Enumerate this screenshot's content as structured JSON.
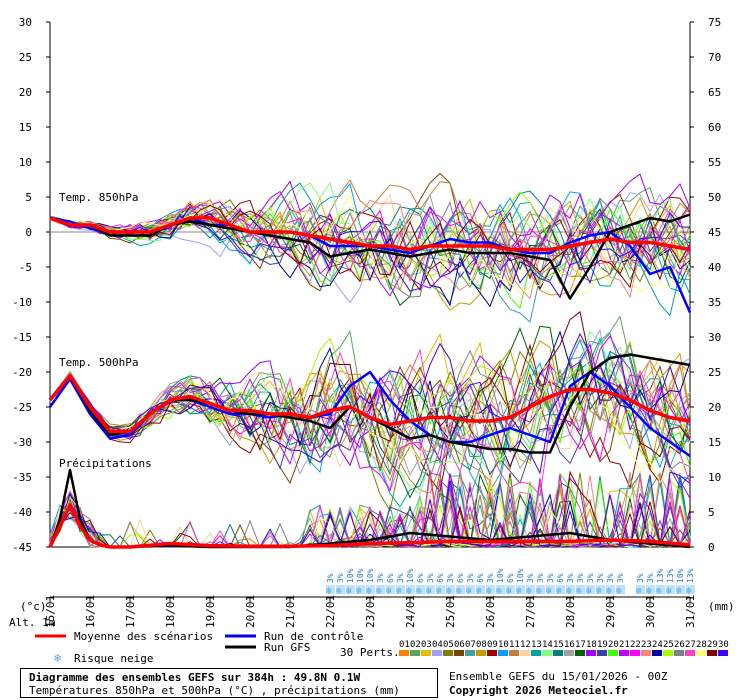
{
  "header": {
    "footer_title": "Diagramme des ensembles GEFS sur 384h : 49.8N 0.1W",
    "footer_subtitle": "Températures 850hPa et 500hPa (°C) , précipitations (mm)",
    "ensemble_run": "Ensemble GEFS du 15/01/2026 - 00Z",
    "copyright": "Copyright 2026 Meteociel.fr"
  },
  "labels": {
    "left_unit": "(°c)",
    "right_unit": "(mm)",
    "alt": "Alt. 1m",
    "temp850": "Temp. 850hPa",
    "temp500": "Temp. 500hPa",
    "precip": "Précipitations",
    "perts": "30 Perts."
  },
  "legend": {
    "mean": {
      "label": "Moyenne des scénarios",
      "color": "#ff0000"
    },
    "control": {
      "label": "Run de contrôle",
      "color": "#0000ff"
    },
    "gfs": {
      "label": "Run GFS",
      "color": "#000000"
    },
    "snow": {
      "label": "Risque neige",
      "color": "#55aaee",
      "icon": "snowflake-icon"
    }
  },
  "perturbation_numbers": [
    "01",
    "02",
    "03",
    "04",
    "05",
    "06",
    "07",
    "08",
    "09",
    "10",
    "11",
    "12",
    "13",
    "14",
    "15",
    "16",
    "17",
    "18",
    "19",
    "20",
    "21",
    "22",
    "23",
    "24",
    "25",
    "26",
    "27",
    "28",
    "29",
    "30"
  ],
  "perturbation_colors": [
    "#ff8000",
    "#60a060",
    "#e0c000",
    "#a0a0ff",
    "#808000",
    "#804000",
    "#40a0a0",
    "#c0a000",
    "#a00000",
    "#00a0ff",
    "#c08040",
    "#ffd0a0",
    "#00a0a0",
    "#80ff80",
    "#008080",
    "#a0a0a0",
    "#006000",
    "#a000ff",
    "#4040a0",
    "#40ff00",
    "#c000ff",
    "#ff00ff",
    "#ff8080",
    "#0000a0",
    "#a0ff00",
    "#808080",
    "#ff40c0",
    "#ffff80",
    "#800000",
    "#4000ff"
  ],
  "snow_risk": {
    "points": [
      {
        "x": 7.0,
        "pct": "3%"
      },
      {
        "x": 7.25,
        "pct": "3%"
      },
      {
        "x": 7.5,
        "pct": "10%"
      },
      {
        "x": 7.75,
        "pct": "10%"
      },
      {
        "x": 8.0,
        "pct": "10%"
      },
      {
        "x": 8.25,
        "pct": "3%"
      },
      {
        "x": 8.5,
        "pct": "6%"
      },
      {
        "x": 8.75,
        "pct": "3%"
      },
      {
        "x": 9.0,
        "pct": "10%"
      },
      {
        "x": 9.25,
        "pct": "6%"
      },
      {
        "x": 9.5,
        "pct": "3%"
      },
      {
        "x": 9.75,
        "pct": "6%"
      },
      {
        "x": 10.0,
        "pct": "3%"
      },
      {
        "x": 10.25,
        "pct": "6%"
      },
      {
        "x": 10.5,
        "pct": "3%"
      },
      {
        "x": 10.75,
        "pct": "6%"
      },
      {
        "x": 11.0,
        "pct": "3%"
      },
      {
        "x": 11.25,
        "pct": "10%"
      },
      {
        "x": 11.5,
        "pct": "6%"
      },
      {
        "x": 11.75,
        "pct": "10%"
      },
      {
        "x": 12.0,
        "pct": "3%"
      },
      {
        "x": 12.25,
        "pct": "3%"
      },
      {
        "x": 12.5,
        "pct": "3%"
      },
      {
        "x": 12.75,
        "pct": "6%"
      },
      {
        "x": 13.0,
        "pct": "3%"
      },
      {
        "x": 13.25,
        "pct": "3%"
      },
      {
        "x": 13.5,
        "pct": "3%"
      },
      {
        "x": 13.75,
        "pct": "3%"
      },
      {
        "x": 14.0,
        "pct": "3%"
      },
      {
        "x": 14.25,
        "pct": "3%"
      },
      {
        "x": 14.75,
        "pct": "3%"
      },
      {
        "x": 15.0,
        "pct": "3%"
      },
      {
        "x": 15.25,
        "pct": "13%"
      },
      {
        "x": 15.5,
        "pct": "13%"
      },
      {
        "x": 15.75,
        "pct": "10%"
      },
      {
        "x": 16.0,
        "pct": "13%"
      }
    ]
  },
  "chart_data": {
    "type": "line",
    "x_labels": [
      "15/01",
      "16/01",
      "17/01",
      "18/01",
      "19/01",
      "20/01",
      "21/01",
      "22/01",
      "23/01",
      "24/01",
      "25/01",
      "26/01",
      "27/01",
      "28/01",
      "29/01",
      "30/01",
      "31/01"
    ],
    "x_unit": "days",
    "xlim": [
      0,
      16
    ],
    "y_left": {
      "label": "(°c)",
      "ylim": [
        -45,
        30
      ],
      "ticks": [
        30,
        25,
        20,
        15,
        10,
        5,
        0,
        -5,
        -10,
        -15,
        -20,
        -25,
        -30,
        -35,
        -40,
        -45
      ]
    },
    "y_right": {
      "label": "(mm)",
      "ylim": [
        0,
        75
      ],
      "ticks": [
        75,
        70,
        65,
        60,
        55,
        50,
        45,
        40,
        35,
        30,
        25,
        20,
        15,
        10,
        5,
        0
      ]
    },
    "grid": false,
    "series": [
      {
        "name": "Moyenne des scénarios",
        "group": "t850",
        "color": "#ff0000",
        "x": [
          0,
          0.5,
          1,
          1.5,
          2,
          2.5,
          3,
          3.5,
          4,
          4.5,
          5,
          5.5,
          6,
          6.5,
          7,
          7.5,
          8,
          8.5,
          9,
          9.5,
          10,
          10.5,
          11,
          11.5,
          12,
          12.5,
          13,
          13.5,
          14,
          14.5,
          15,
          15.5,
          16
        ],
        "y": [
          2,
          1,
          1,
          0,
          0,
          0,
          1,
          2,
          2,
          1,
          0,
          0,
          0,
          -0.5,
          -1,
          -1.5,
          -2,
          -2,
          -2.5,
          -2,
          -2,
          -2,
          -2,
          -2.5,
          -2.5,
          -2.5,
          -2,
          -1.5,
          -1,
          -1.5,
          -1.5,
          -2,
          -2.5
        ]
      },
      {
        "name": "Run de contrôle",
        "group": "t850",
        "color": "#0000ff",
        "x": [
          0,
          0.5,
          1,
          1.5,
          2,
          2.5,
          3,
          3.5,
          4,
          4.5,
          5,
          5.5,
          6,
          6.5,
          7,
          7.5,
          8,
          8.5,
          9,
          9.5,
          10,
          10.5,
          11,
          11.5,
          12,
          12.5,
          13,
          13.5,
          14,
          14.5,
          15,
          15.5,
          16
        ],
        "y": [
          2,
          1.5,
          0.5,
          0,
          0,
          0,
          1,
          2,
          1,
          1,
          0,
          0,
          0,
          -0.5,
          -2,
          -2,
          -2,
          -2.5,
          -3,
          -2,
          -1,
          -1.5,
          -1.5,
          -2.5,
          -3,
          -3,
          -1.5,
          -0.5,
          0,
          -2,
          -6,
          -5,
          -11.5
        ]
      },
      {
        "name": "Run GFS",
        "group": "t850",
        "color": "#000000",
        "x": [
          0,
          0.5,
          1,
          1.5,
          2,
          2.5,
          3,
          3.5,
          4,
          4.5,
          5,
          5.5,
          6,
          6.5,
          7,
          7.5,
          8,
          8.5,
          9,
          9.5,
          10,
          10.5,
          11,
          11.5,
          12,
          12.5,
          13,
          13.5,
          14,
          14.5,
          15,
          15.5,
          16
        ],
        "y": [
          2,
          1,
          1,
          -0.5,
          -0.5,
          -0.5,
          1,
          1.5,
          1,
          0.5,
          0,
          -0.5,
          -1,
          -1.5,
          -3.5,
          -3,
          -2.5,
          -3,
          -3.5,
          -3,
          -2.5,
          -3,
          -3,
          -3,
          -3.5,
          -4,
          -9.5,
          -5,
          0,
          1,
          2,
          1.5,
          2.5
        ]
      },
      {
        "name": "Moyenne des scénarios",
        "group": "t500",
        "color": "#ff0000",
        "x": [
          0,
          0.5,
          1,
          1.5,
          2,
          2.5,
          3,
          3.5,
          4,
          4.5,
          5,
          5.5,
          6,
          6.5,
          7,
          7.5,
          8,
          8.5,
          9,
          9.5,
          10,
          10.5,
          11,
          11.5,
          12,
          12.5,
          13,
          13.5,
          14,
          14.5,
          15,
          15.5,
          16
        ],
        "y": [
          -24,
          -20.5,
          -25,
          -28.5,
          -28.5,
          -26,
          -24,
          -23.5,
          -24.5,
          -25.5,
          -25.5,
          -26,
          -26,
          -26.5,
          -25.5,
          -25,
          -26.5,
          -27.5,
          -27,
          -26.5,
          -26.5,
          -27,
          -27,
          -26.5,
          -25,
          -23.5,
          -22.5,
          -22.5,
          -23,
          -24,
          -25.5,
          -26.5,
          -27
        ]
      },
      {
        "name": "Run de contrôle",
        "group": "t500",
        "color": "#0000ff",
        "x": [
          0,
          0.5,
          1,
          1.5,
          2,
          2.5,
          3,
          3.5,
          4,
          4.5,
          5,
          5.5,
          6,
          6.5,
          7,
          7.5,
          8,
          8.5,
          9,
          9.5,
          10,
          10.5,
          11,
          11.5,
          12,
          12.5,
          13,
          13.5,
          14,
          14.5,
          15,
          15.5,
          16
        ],
        "y": [
          -25,
          -21,
          -26,
          -29.5,
          -29,
          -26,
          -24,
          -24,
          -25,
          -26,
          -26,
          -26.5,
          -26,
          -26.5,
          -26,
          -22,
          -20,
          -24,
          -27,
          -29,
          -30,
          -30,
          -29,
          -28,
          -29,
          -30,
          -22,
          -20,
          -22,
          -25,
          -28,
          -30,
          -32
        ]
      },
      {
        "name": "Run GFS",
        "group": "t500",
        "color": "#000000",
        "x": [
          0,
          0.5,
          1,
          1.5,
          2,
          2.5,
          3,
          3.5,
          4,
          4.5,
          5,
          5.5,
          6,
          6.5,
          7,
          7.5,
          8,
          8.5,
          9,
          9.5,
          10,
          10.5,
          11,
          11.5,
          12,
          12.5,
          13,
          13.5,
          14,
          14.5,
          15,
          15.5,
          16
        ],
        "y": [
          -24,
          -20.5,
          -25.5,
          -29,
          -28.5,
          -26,
          -24,
          -24,
          -24.5,
          -25.5,
          -26,
          -26,
          -26.5,
          -27,
          -28,
          -25,
          -26.5,
          -28,
          -29.5,
          -29,
          -30,
          -30.5,
          -31,
          -31,
          -31.5,
          -31.5,
          -25,
          -20,
          -18,
          -17.5,
          -18,
          -18.5,
          -19
        ]
      },
      {
        "name": "Moyenne des scénarios",
        "group": "precip",
        "color": "#ff0000",
        "x": [
          0,
          0.25,
          0.5,
          0.75,
          1,
          1.25,
          1.5,
          2,
          3,
          4,
          5,
          6,
          7,
          8,
          9,
          10,
          11,
          12,
          13,
          14,
          15,
          16
        ],
        "y": [
          0,
          3,
          6,
          3,
          1,
          0.3,
          0,
          0,
          0.5,
          0.2,
          0.1,
          0.1,
          0.2,
          0.5,
          0.6,
          0.8,
          0.8,
          0.8,
          0.8,
          1,
          0.8,
          0.3
        ]
      },
      {
        "name": "Run GFS",
        "group": "precip",
        "color": "#000000",
        "x": [
          0,
          0.25,
          0.5,
          0.75,
          1,
          1.25,
          1.5,
          2,
          3,
          4,
          5,
          6,
          7,
          8,
          9,
          10,
          11,
          12,
          13,
          14,
          15,
          16
        ],
        "y": [
          0,
          4,
          11,
          4,
          1,
          0.3,
          0,
          0,
          0.2,
          0,
          0,
          0,
          0.5,
          1,
          2,
          1.5,
          1,
          1.5,
          2,
          1,
          0.5,
          0
        ]
      }
    ]
  }
}
